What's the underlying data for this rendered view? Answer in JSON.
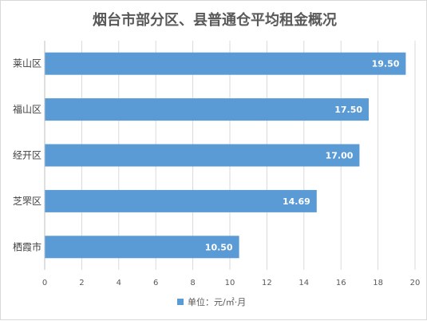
{
  "chart_data": {
    "type": "bar",
    "orientation": "horizontal",
    "title": "烟台市部分区、县普通仓平均租金概况",
    "categories": [
      "莱山区",
      "福山区",
      "经开区",
      "芝罘区",
      "栖霞市"
    ],
    "series": [
      {
        "name": "单位：元/㎡·月",
        "values": [
          19.5,
          17.5,
          17.0,
          14.69,
          10.5
        ],
        "labels": [
          "19.50",
          "17.50",
          "17.00",
          "14.69",
          "10.50"
        ]
      }
    ],
    "xticks": [
      "0",
      "2",
      "4",
      "6",
      "8",
      "10",
      "12",
      "14",
      "16",
      "18",
      "20"
    ],
    "xlim": [
      0,
      20
    ],
    "xlabel": "",
    "ylabel": "",
    "grid": "vertical",
    "legend": "bottom",
    "colors": {
      "bar": "#5b9bd5",
      "grid": "#d9d9d9",
      "axis": "#bfbfbf"
    }
  }
}
